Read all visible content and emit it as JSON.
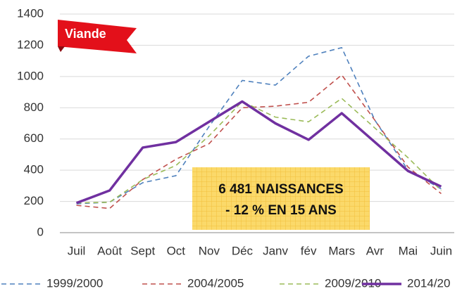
{
  "chart_data": {
    "type": "line",
    "annotations": [
      "Viande",
      "6 481 NAISSANCES",
      "- 12 % EN 15 ANS"
    ],
    "categories": [
      "Juil",
      "Août",
      "Sept",
      "Oct",
      "Nov",
      "Déc",
      "Janv",
      "fév",
      "Mars",
      "Avr",
      "Mai",
      "Juin"
    ],
    "series": [
      {
        "name": "1999/2000",
        "color": "#4f81bd",
        "style": "dashed",
        "values": [
          185,
          195,
          320,
          365,
          680,
          975,
          945,
          1130,
          1185,
          720,
          400,
          280
        ]
      },
      {
        "name": "2004/2005",
        "color": "#c0504d",
        "style": "dashed",
        "values": [
          175,
          155,
          340,
          470,
          570,
          800,
          810,
          835,
          1010,
          720,
          420,
          250
        ]
      },
      {
        "name": "2009/2010",
        "color": "#9bbb59",
        "style": "dashed",
        "values": [
          190,
          195,
          340,
          430,
          620,
          840,
          740,
          710,
          860,
          670,
          480,
          270
        ]
      },
      {
        "name": "2014/20",
        "color": "#7030a0",
        "style": "solid",
        "values": [
          190,
          270,
          545,
          580,
          710,
          840,
          700,
          595,
          765,
          580,
          395,
          295
        ]
      }
    ],
    "ylim": [
      0,
      1400
    ],
    "yticks": [
      0,
      200,
      400,
      600,
      800,
      1000,
      1200,
      1400
    ],
    "grid": true,
    "legend": "bottom"
  }
}
